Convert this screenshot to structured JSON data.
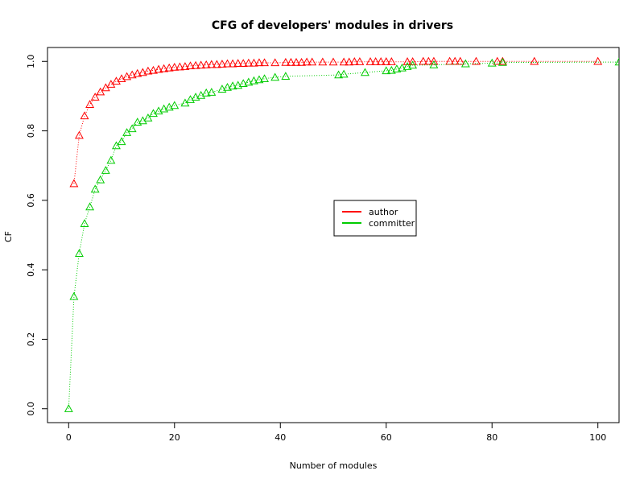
{
  "chart_data": {
    "type": "scatter",
    "title": "CFG of developers' modules in drivers",
    "xlabel": "Number of modules",
    "ylabel": "CF",
    "xlim": [
      -4,
      104
    ],
    "ylim": [
      -0.04,
      1.04
    ],
    "x_ticks": [
      0,
      20,
      40,
      60,
      80,
      100
    ],
    "x_tick_labels": [
      "0",
      "20",
      "40",
      "60",
      "80",
      "100"
    ],
    "y_ticks": [
      0.0,
      0.2,
      0.4,
      0.6,
      0.8,
      1.0
    ],
    "y_tick_labels": [
      "0.0",
      "0.2",
      "0.4",
      "0.6",
      "0.8",
      "1.0"
    ],
    "grid": false,
    "legend_position": "center-right",
    "marker": "open-triangle",
    "line_style": "dotted",
    "series": [
      {
        "name": "author",
        "color": "#ff0000",
        "points": [
          [
            1,
            0.648
          ],
          [
            2,
            0.787
          ],
          [
            3,
            0.843
          ],
          [
            4,
            0.876
          ],
          [
            5,
            0.897
          ],
          [
            6,
            0.912
          ],
          [
            7,
            0.924
          ],
          [
            8,
            0.934
          ],
          [
            9,
            0.943
          ],
          [
            10,
            0.95
          ],
          [
            11,
            0.956
          ],
          [
            12,
            0.961
          ],
          [
            13,
            0.965
          ],
          [
            14,
            0.968
          ],
          [
            15,
            0.972
          ],
          [
            16,
            0.974
          ],
          [
            17,
            0.977
          ],
          [
            18,
            0.979
          ],
          [
            19,
            0.981
          ],
          [
            20,
            0.983
          ],
          [
            21,
            0.984
          ],
          [
            22,
            0.985
          ],
          [
            23,
            0.987
          ],
          [
            24,
            0.988
          ],
          [
            25,
            0.989
          ],
          [
            26,
            0.99
          ],
          [
            27,
            0.991
          ],
          [
            28,
            0.991
          ],
          [
            29,
            0.992
          ],
          [
            30,
            0.993
          ],
          [
            31,
            0.993
          ],
          [
            32,
            0.994
          ],
          [
            33,
            0.994
          ],
          [
            34,
            0.995
          ],
          [
            35,
            0.995
          ],
          [
            36,
            0.996
          ],
          [
            37,
            0.996
          ],
          [
            39,
            0.996
          ],
          [
            41,
            0.997
          ],
          [
            42,
            0.997
          ],
          [
            43,
            0.997
          ],
          [
            44,
            0.997
          ],
          [
            45,
            0.998
          ],
          [
            46,
            0.998
          ],
          [
            48,
            0.998
          ],
          [
            50,
            0.998
          ],
          [
            52,
            0.998
          ],
          [
            53,
            0.998
          ],
          [
            54,
            0.999
          ],
          [
            55,
            0.999
          ],
          [
            57,
            0.999
          ],
          [
            58,
            0.999
          ],
          [
            59,
            0.999
          ],
          [
            60,
            0.999
          ],
          [
            61,
            0.999
          ],
          [
            64,
            0.999
          ],
          [
            65,
            0.999
          ],
          [
            67,
            1.0
          ],
          [
            68,
            1.0
          ],
          [
            69,
            1.0
          ],
          [
            72,
            1.0
          ],
          [
            73,
            1.0
          ],
          [
            74,
            1.0
          ],
          [
            77,
            1.0
          ],
          [
            81,
            1.0
          ],
          [
            82,
            1.0
          ],
          [
            88,
            1.0
          ],
          [
            100,
            1.0
          ]
        ]
      },
      {
        "name": "committer",
        "color": "#00cc00",
        "points": [
          [
            0,
            0.0
          ],
          [
            1,
            0.323
          ],
          [
            2,
            0.447
          ],
          [
            3,
            0.533
          ],
          [
            4,
            0.581
          ],
          [
            5,
            0.632
          ],
          [
            6,
            0.659
          ],
          [
            7,
            0.686
          ],
          [
            8,
            0.715
          ],
          [
            9,
            0.757
          ],
          [
            10,
            0.769
          ],
          [
            11,
            0.795
          ],
          [
            12,
            0.806
          ],
          [
            13,
            0.825
          ],
          [
            14,
            0.829
          ],
          [
            15,
            0.837
          ],
          [
            16,
            0.85
          ],
          [
            17,
            0.857
          ],
          [
            18,
            0.863
          ],
          [
            19,
            0.868
          ],
          [
            20,
            0.873
          ],
          [
            22,
            0.88
          ],
          [
            23,
            0.89
          ],
          [
            24,
            0.897
          ],
          [
            25,
            0.902
          ],
          [
            26,
            0.909
          ],
          [
            27,
            0.911
          ],
          [
            29,
            0.92
          ],
          [
            30,
            0.925
          ],
          [
            31,
            0.929
          ],
          [
            32,
            0.931
          ],
          [
            33,
            0.936
          ],
          [
            34,
            0.94
          ],
          [
            35,
            0.944
          ],
          [
            36,
            0.947
          ],
          [
            37,
            0.95
          ],
          [
            39,
            0.954
          ],
          [
            41,
            0.957
          ],
          [
            51,
            0.961
          ],
          [
            52,
            0.963
          ],
          [
            56,
            0.968
          ],
          [
            60,
            0.973
          ],
          [
            61,
            0.974
          ],
          [
            62,
            0.978
          ],
          [
            63,
            0.981
          ],
          [
            64,
            0.985
          ],
          [
            65,
            0.989
          ],
          [
            69,
            0.99
          ],
          [
            75,
            0.993
          ],
          [
            80,
            0.995
          ],
          [
            82,
            0.997
          ],
          [
            104,
            0.998
          ]
        ]
      }
    ]
  }
}
